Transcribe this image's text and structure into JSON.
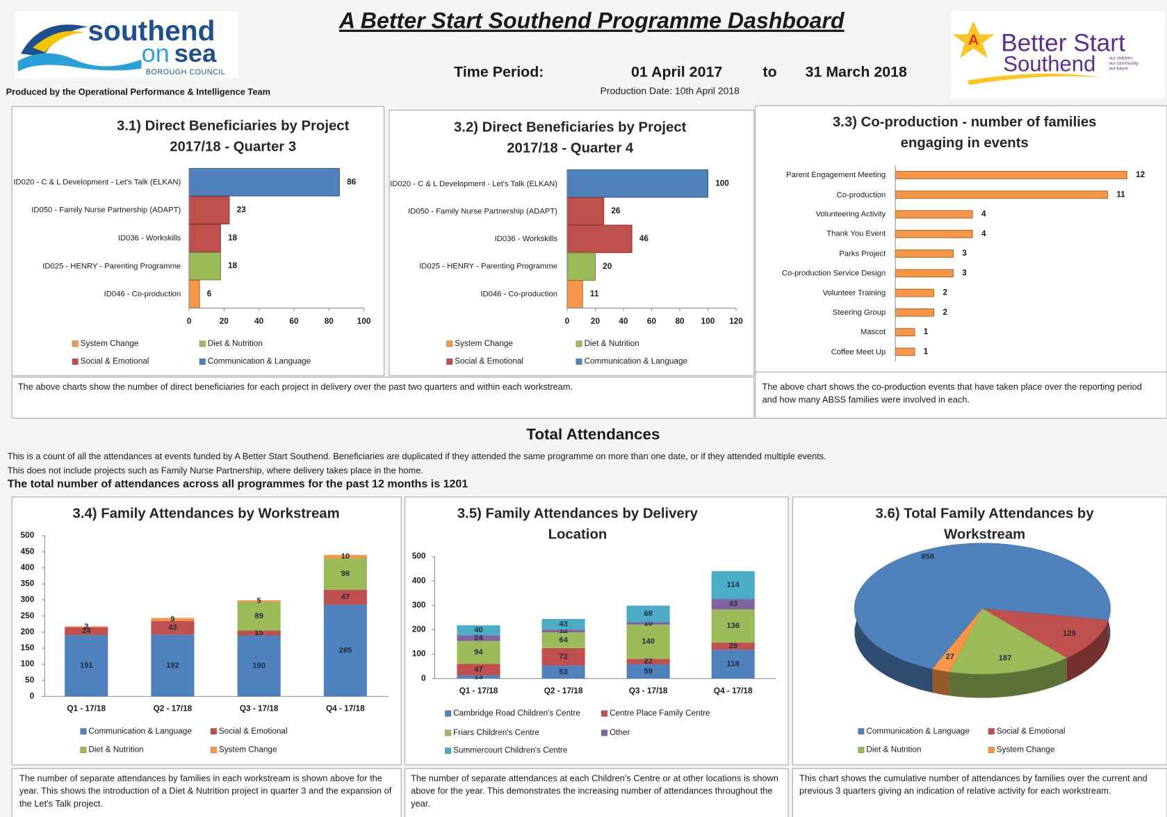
{
  "header": {
    "title": "A Better Start Southend Programme Dashboard",
    "logo_left": [
      "southend",
      "on",
      "sea",
      "BOROUGH COUNCIL"
    ],
    "produced_by": "Produced by the Operational Performance & Intelligence Team",
    "time_period_label": "Time Period:",
    "period_start": "01 April 2017",
    "period_to": "to",
    "period_end": "31 March 2018",
    "production_date": "Production Date: 10th April 2018",
    "logo_right": {
      "mark": "A",
      "line1": "Better Start",
      "line2": "Southend",
      "tagline": [
        "our children",
        "our community",
        "our future"
      ]
    }
  },
  "chart_data": [
    {
      "type": "hbar",
      "title": [
        "3.1) Direct Beneficiaries by Project",
        "2017/18 - Quarter 3"
      ],
      "categories": [
        "ID020 - C & L Development - Let's Talk (ELKAN)",
        "ID050 - Family Nurse Partnership (ADAPT)",
        "ID036 - Workskills",
        "ID025 - HENRY - Parenting Programme",
        "ID046 - Co-production"
      ],
      "values": [
        86,
        23,
        18,
        18,
        6
      ],
      "colors": [
        "#4f81bd",
        "#c0504d",
        "#c0504d",
        "#9bbb59",
        "#f79646"
      ],
      "xlim": [
        0,
        100
      ],
      "xticks": [
        0,
        20,
        40,
        60,
        80,
        100
      ],
      "legend": [
        {
          "name": "System Change",
          "color": "#f79646"
        },
        {
          "name": "Diet & Nutrition",
          "color": "#9bbb59"
        },
        {
          "name": "Social & Emotional",
          "color": "#c0504d"
        },
        {
          "name": "Communication & Language",
          "color": "#4f81bd"
        }
      ]
    },
    {
      "type": "hbar",
      "title": [
        "3.2) Direct Beneficiaries by Project",
        "2017/18 - Quarter 4"
      ],
      "categories": [
        "ID020 - C & L Development - Let's Talk (ELKAN)",
        "ID050 - Family Nurse Partnership (ADAPT)",
        "ID036 - Workskills",
        "ID025 - HENRY - Parenting Programme",
        "ID046 - Co-production"
      ],
      "values": [
        100,
        26,
        46,
        20,
        11
      ],
      "colors": [
        "#4f81bd",
        "#c0504d",
        "#c0504d",
        "#9bbb59",
        "#f79646"
      ],
      "xlim": [
        0,
        120
      ],
      "xticks": [
        0,
        20,
        40,
        60,
        80,
        100,
        120
      ],
      "legend": [
        {
          "name": "System Change",
          "color": "#f79646"
        },
        {
          "name": "Diet & Nutrition",
          "color": "#9bbb59"
        },
        {
          "name": "Social & Emotional",
          "color": "#c0504d"
        },
        {
          "name": "Communication & Language",
          "color": "#4f81bd"
        }
      ]
    },
    {
      "type": "hbar",
      "title": [
        "3.3) Co-production - number of families",
        "engaging in events"
      ],
      "categories": [
        "Parent Engagement Meeting",
        "Co-production",
        "Volunteering Activity",
        "Thank You Event",
        "Parks Project",
        "Co-production Service Design",
        "Volunteer Training",
        "Steering Group",
        "Mascot",
        "Coffee Meet Up"
      ],
      "values": [
        12,
        11,
        4,
        4,
        3,
        3,
        2,
        2,
        1,
        1
      ],
      "color": "#f79646",
      "xlim": [
        0,
        13
      ]
    },
    {
      "type": "stacked",
      "title": [
        "3.4) Family Attendances by Workstream"
      ],
      "categories": [
        "Q1 - 17/18",
        "Q2 - 17/18",
        "Q3 - 17/18",
        "Q4 - 17/18"
      ],
      "series": [
        {
          "name": "Communication & Language",
          "color": "#4f81bd",
          "values": [
            191,
            192,
            190,
            285
          ]
        },
        {
          "name": "Social & Emotional",
          "color": "#c0504d",
          "values": [
            24,
            43,
            15,
            47
          ]
        },
        {
          "name": "Diet & Nutrition",
          "color": "#9bbb59",
          "values": [
            null,
            null,
            89,
            98
          ]
        },
        {
          "name": "System Change",
          "color": "#f79646",
          "values": [
            3,
            9,
            5,
            10
          ]
        }
      ],
      "ylim": [
        0,
        500
      ],
      "yticks": [
        0,
        50,
        100,
        150,
        200,
        250,
        300,
        350,
        400,
        450,
        500
      ]
    },
    {
      "type": "stacked",
      "title": [
        "3.5) Family Attendances by Delivery",
        "Location"
      ],
      "categories": [
        "Q1 - 17/18",
        "Q2 - 17/18",
        "Q3 - 17/18",
        "Q4 - 17/18"
      ],
      "series": [
        {
          "name": "Cambridge Road Children's Centre",
          "color": "#4f81bd",
          "values": [
            13,
            53,
            59,
            118
          ]
        },
        {
          "name": "Centre Place Family Centre",
          "color": "#c0504d",
          "values": [
            47,
            72,
            22,
            29
          ]
        },
        {
          "name": "Friars Children's Centre",
          "color": "#9bbb59",
          "values": [
            94,
            64,
            140,
            136
          ]
        },
        {
          "name": "Other",
          "color": "#8064a2",
          "values": [
            24,
            12,
            10,
            43
          ]
        },
        {
          "name": "Summercourt Children's Centre",
          "color": "#4bacc6",
          "values": [
            40,
            43,
            68,
            114
          ]
        }
      ],
      "ylim": [
        0,
        500
      ],
      "yticks": [
        0,
        100,
        200,
        300,
        400,
        500
      ]
    },
    {
      "type": "pie",
      "title": [
        "3.6) Total Family Attendances by",
        "Workstream"
      ],
      "categories": [
        "Communication & Language",
        "Social & Emotional",
        "Diet & Nutrition",
        "System Change"
      ],
      "values": [
        858,
        129,
        187,
        27
      ],
      "colors": [
        "#4f81bd",
        "#c0504d",
        "#9bbb59",
        "#f79646"
      ]
    }
  ],
  "captions": {
    "beneficiaries": "The above charts show the number of direct beneficiaries for each project in delivery over the past two quarters and within each workstream.",
    "coproduction": "The above chart shows the  co-production events that have taken place over the reporting period and how many ABSS families were involved in each.",
    "workstream": "The number of separate attendances by families in each workstream is shown above for the year. This shows the introduction of a Diet & Nutrition project in quarter 3 and the expansion of the Let's Talk project.",
    "location": "The number of separate attendances at each Children's Centre or at other locations is shown above for the year. This demonstrates the increasing number of attendances throughout the year.",
    "total": "This chart shows the cumulative number of attendances by families over the current and previous 3 quarters giving an indication of relative activity for each workstream."
  },
  "attendances": {
    "heading": "Total Attendances",
    "intro": [
      "This is a count of all the attendances at events funded by A Better Start Southend.  Beneficiaries are duplicated if they attended the same programme on more than one date, or if they attended multiple events.",
      "This does not include projects such as Family Nurse Partnership, where delivery takes place in the home."
    ],
    "total_statement": "The total number of attendances across all programmes for the past 12 months is 1201"
  }
}
